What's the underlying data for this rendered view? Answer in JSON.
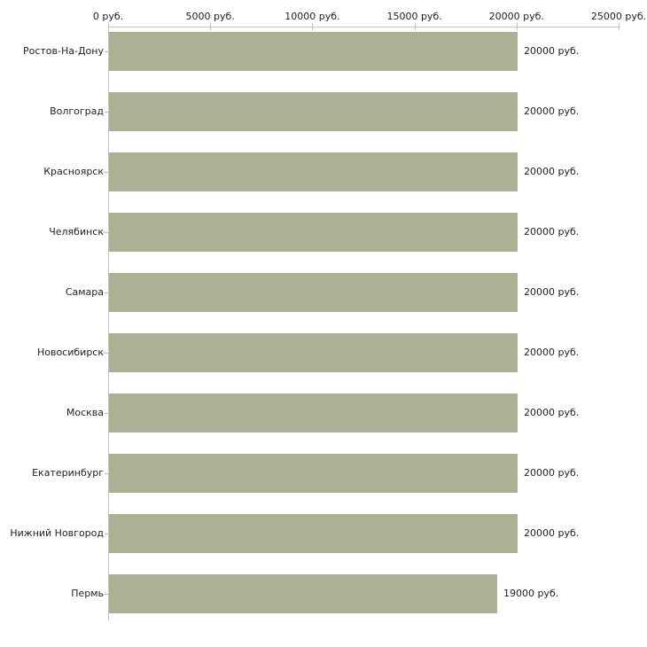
{
  "chart_data": {
    "type": "bar",
    "orientation": "horizontal",
    "title": "",
    "xlabel": "",
    "ylabel": "",
    "xlim": [
      0,
      25000
    ],
    "grid": false,
    "legend": "none",
    "currency_suffix": "руб.",
    "categories": [
      "Ростов-На-Дону",
      "Волгоград",
      "Красноярск",
      "Челябинск",
      "Самара",
      "Новосибирск",
      "Москва",
      "Екатеринбург",
      "Нижний Новгород",
      "Пермь"
    ],
    "values": [
      20000,
      20000,
      20000,
      20000,
      20000,
      20000,
      20000,
      20000,
      20000,
      19000
    ],
    "value_labels": [
      "20000 руб.",
      "20000 руб.",
      "20000 руб.",
      "20000 руб.",
      "20000 руб.",
      "20000 руб.",
      "20000 руб.",
      "20000 руб.",
      "20000 руб.",
      "19000 руб."
    ],
    "x_ticks": [
      0,
      5000,
      10000,
      15000,
      20000,
      25000
    ],
    "x_tick_labels": [
      "0 руб.",
      "5000 руб.",
      "10000 руб.",
      "15000 руб.",
      "20000 руб.",
      "25000 руб."
    ],
    "colors": {
      "bar": "#acb296",
      "axis": "#c6c6c6",
      "tick": "#c2c398",
      "text": "#1f1f1f",
      "background": "#ffffff"
    }
  }
}
